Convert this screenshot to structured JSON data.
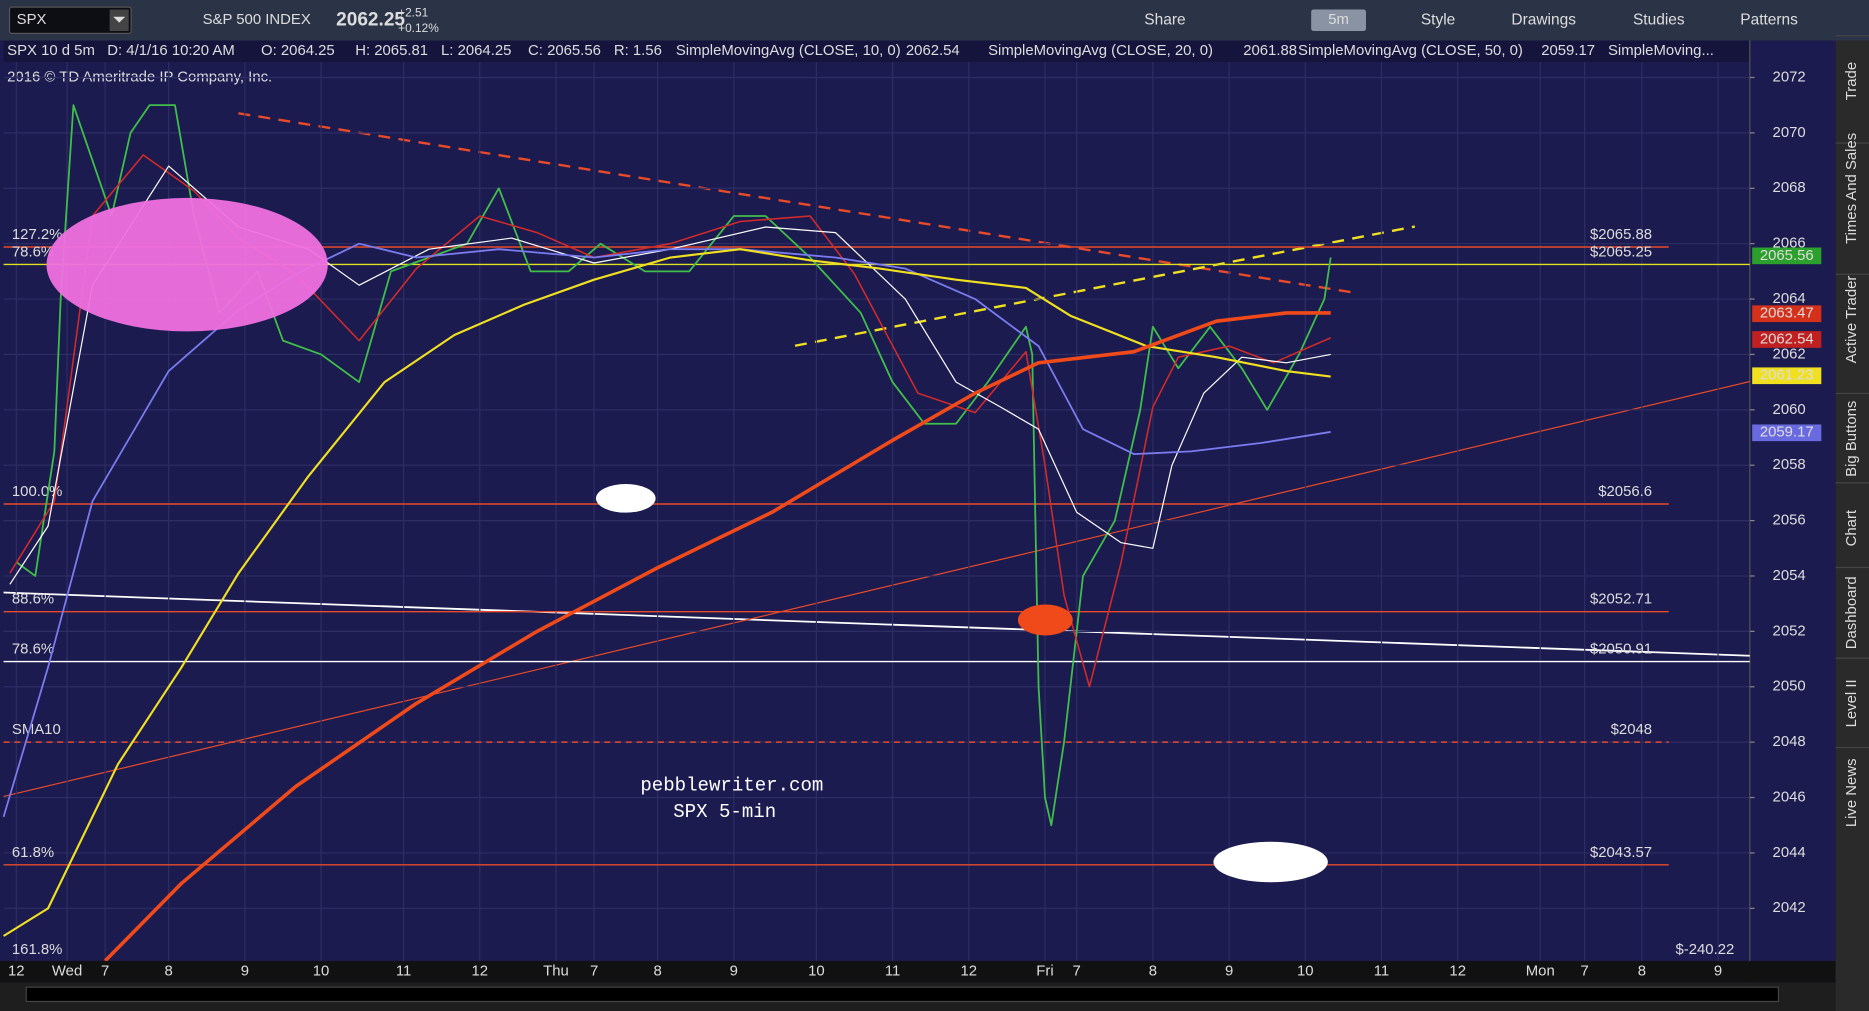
{
  "toolbar": {
    "symbol": "SPX",
    "description": "S&P 500 INDEX",
    "last": "2062.25",
    "change": "+2.51",
    "change_pct": "+0.12%",
    "share": "Share",
    "interval": "5m",
    "style": "Style",
    "drawings": "Drawings",
    "studies": "Studies",
    "patterns": "Patterns"
  },
  "header": {
    "chart": "SPX 10 d 5m",
    "date": "D: 4/1/16 10:20 AM",
    "open": "O: 2064.25",
    "high": "H: 2065.81",
    "low": "L: 2064.25",
    "close": "C: 2065.56",
    "range": "R: 1.56"
  },
  "copyright": "2016 © TD Ameritrade IP Company, Inc.",
  "watermark": [
    "pebblewriter.com",
    "SPX 5-min"
  ],
  "side_tabs": [
    "Trade",
    "Times And Sales",
    "Active Trader",
    "Big Buttons",
    "Chart",
    "Dashboard",
    "Level II",
    "Live News"
  ],
  "chart_data": {
    "type": "line",
    "xlim": [
      0,
      275
    ],
    "ylim": [
      2040.1,
      2072.56
    ],
    "xticks": [
      {
        "value": 2,
        "label": "12"
      },
      {
        "value": 10,
        "label": "Wed"
      },
      {
        "value": 16,
        "label": "7"
      },
      {
        "value": 26,
        "label": "8"
      },
      {
        "value": 38,
        "label": "9"
      },
      {
        "value": 50,
        "label": "10"
      },
      {
        "value": 63,
        "label": "11"
      },
      {
        "value": 75,
        "label": "12"
      },
      {
        "value": 87,
        "label": "Thu"
      },
      {
        "value": 93,
        "label": "7"
      },
      {
        "value": 103,
        "label": "8"
      },
      {
        "value": 115,
        "label": "9"
      },
      {
        "value": 128,
        "label": "10"
      },
      {
        "value": 140,
        "label": "11"
      },
      {
        "value": 152,
        "label": "12"
      },
      {
        "value": 164,
        "label": "Fri"
      },
      {
        "value": 169,
        "label": "7"
      },
      {
        "value": 181,
        "label": "8"
      },
      {
        "value": 193,
        "label": "9"
      },
      {
        "value": 205,
        "label": "10"
      },
      {
        "value": 217,
        "label": "11"
      },
      {
        "value": 229,
        "label": "12"
      },
      {
        "value": 242,
        "label": "Mon"
      },
      {
        "value": 249,
        "label": "7"
      },
      {
        "value": 258,
        "label": "8"
      },
      {
        "value": 270,
        "label": "9"
      }
    ],
    "yticks": [
      2042,
      2044,
      2046,
      2048,
      2050,
      2052,
      2054,
      2056,
      2058,
      2060,
      2062,
      2064,
      2066,
      2068,
      2070,
      2072
    ],
    "series": [
      {
        "name": "SPX",
        "color": "#3fbf4a",
        "width": 1.5,
        "x": [
          2,
          5,
          8,
          9,
          11,
          14,
          17,
          20,
          23,
          27,
          30,
          34,
          40,
          44,
          50,
          56,
          61,
          67,
          73,
          78,
          83,
          89,
          94,
          101,
          108,
          115,
          120,
          127,
          135,
          140,
          145,
          150,
          155,
          161,
          162,
          163,
          164,
          165,
          167,
          170,
          175,
          179,
          181,
          185,
          190,
          195,
          199,
          204,
          208,
          209
        ],
        "values": [
          2054.5,
          2054,
          2058.5,
          2064,
          2071,
          2069,
          2067,
          2070,
          2071,
          2071,
          2067,
          2063.5,
          2065,
          2062.5,
          2062,
          2061,
          2065,
          2065.5,
          2066,
          2068,
          2065,
          2065,
          2066,
          2065,
          2065,
          2067,
          2067,
          2065.5,
          2063.5,
          2061,
          2059.5,
          2059.5,
          2061,
          2063,
          2062,
          2050,
          2046,
          2045,
          2048,
          2054,
          2056,
          2060,
          2063,
          2061.5,
          2063,
          2061.5,
          2060,
          2062,
          2064,
          2065.5
        ]
      },
      {
        "name": "SimpleMovingAvg (CLOSE, 10, 0)",
        "header_value": "2062.54",
        "color": "#d42a2a",
        "width": 1.3,
        "x": [
          1,
          8,
          14,
          22,
          30,
          37,
          46,
          56,
          65,
          75,
          84,
          93,
          105,
          116,
          127,
          134,
          144,
          153,
          161,
          164,
          167,
          171,
          176,
          181,
          185,
          193,
          200,
          206,
          209
        ],
        "values": [
          2054.1,
          2056.7,
          2067,
          2069.2,
          2067.9,
          2066.2,
          2064.9,
          2062.5,
          2065.1,
          2067,
          2066.4,
          2065.5,
          2066,
          2066.8,
          2067,
          2064.9,
          2060.6,
          2059.9,
          2062.1,
          2058,
          2053.3,
          2050,
          2054.5,
          2060.1,
          2061.9,
          2062.3,
          2061.7,
          2062.3,
          2062.6
        ]
      },
      {
        "name": "SimpleMovingAvg (CLOSE, 20, 0)",
        "header_value": "2061.88",
        "color": "#ffffff",
        "width": 1,
        "x": [
          1,
          7,
          14,
          26,
          37,
          48,
          56,
          67,
          80,
          93,
          105,
          120,
          131,
          142,
          150,
          157,
          163,
          169,
          176,
          181,
          184,
          189,
          195,
          202,
          209
        ],
        "values": [
          2053.7,
          2055.8,
          2064.5,
          2068.8,
          2066.6,
          2065.8,
          2064.5,
          2065.8,
          2066.2,
          2065.3,
          2065.8,
          2066.6,
          2066.4,
          2064,
          2061,
          2060.1,
          2059.3,
          2056.3,
          2055.2,
          2055,
          2058,
          2060.6,
          2061.9,
          2061.7,
          2062
        ]
      },
      {
        "name": "SimpleMovingAvg (CLOSE, 50, 0)",
        "header_value": "2059.17",
        "color": "#7b7bf0",
        "width": 1.5,
        "x": [
          0,
          7,
          14,
          26,
          37,
          46,
          56,
          65,
          78,
          93,
          105,
          116,
          131,
          142,
          153,
          163,
          170,
          178,
          187,
          198,
          209
        ],
        "values": [
          2045.3,
          2050.7,
          2056.7,
          2061.4,
          2063.6,
          2064.9,
          2066,
          2065.5,
          2065.8,
          2065.5,
          2065.8,
          2065.8,
          2065.5,
          2065.1,
          2064,
          2062.3,
          2059.3,
          2058.4,
          2058.5,
          2058.8,
          2059.2
        ]
      },
      {
        "name": "SimpleMoving...",
        "color": "#f0e020",
        "width": 1.8,
        "x": [
          0,
          7,
          18,
          28,
          37,
          48,
          60,
          71,
          82,
          93,
          105,
          116,
          127,
          138,
          150,
          161,
          168,
          180,
          191,
          202,
          209
        ],
        "values": [
          2041,
          2042,
          2047.2,
          2050.7,
          2054.1,
          2057.6,
          2061,
          2062.7,
          2063.8,
          2064.7,
          2065.5,
          2065.8,
          2065.4,
          2065.1,
          2064.7,
          2064.4,
          2063.4,
          2062.3,
          2061.9,
          2061.4,
          2061.2
        ]
      },
      {
        "color": "#f04a1a",
        "width": 3,
        "x": [
          16,
          28,
          46,
          65,
          84,
          103,
          121,
          140,
          153,
          163,
          178,
          191,
          202,
          209
        ],
        "values": [
          2040.1,
          2042.9,
          2046.4,
          2049.4,
          2052,
          2054.3,
          2056.3,
          2058.9,
          2060.6,
          2061.7,
          2062.1,
          2063.2,
          2063.5,
          2063.5
        ]
      }
    ],
    "levels": [
      {
        "value": 2065.88,
        "color": "#e84a2a",
        "left_label": "127.2%",
        "right_label": "$2065.88"
      },
      {
        "value": 2065.25,
        "color": "#e0e020",
        "left_label": "78.6%",
        "right_label": "$2065.25"
      },
      {
        "value": 2056.6,
        "color": "#e84a2a",
        "left_label": "100.0%",
        "right_label": "$2056.6"
      },
      {
        "value": 2052.71,
        "color": "#e84a2a",
        "left_label": "88.6%",
        "right_label": "$2052.71"
      },
      {
        "value": 2050.91,
        "color": "#ffffff",
        "left_label": "78.6%",
        "right_label": "$2050.91"
      },
      {
        "value": 2048,
        "color": "#e84a2a",
        "left_label": "SMA10",
        "right_label": "$2048",
        "dashed": true
      },
      {
        "value": 2043.57,
        "color": "#e84a2a",
        "left_label": "61.8%",
        "right_label": "$2043.57"
      }
    ],
    "bottom_left_label": "161.8%",
    "bottom_right_label": "$-240.22",
    "badges": [
      {
        "value": 2065.56,
        "label": "2065.56",
        "color": "#2ca02c"
      },
      {
        "value": 2063.47,
        "label": "2063.47",
        "color": "#d4301a"
      },
      {
        "value": 2062.54,
        "label": "2062.54",
        "color": "#c02020"
      },
      {
        "value": 2061.23,
        "label": "2061.23",
        "color": "#f0e020"
      },
      {
        "value": 2059.17,
        "label": "2059.17",
        "color": "#6a6ae0"
      }
    ]
  }
}
